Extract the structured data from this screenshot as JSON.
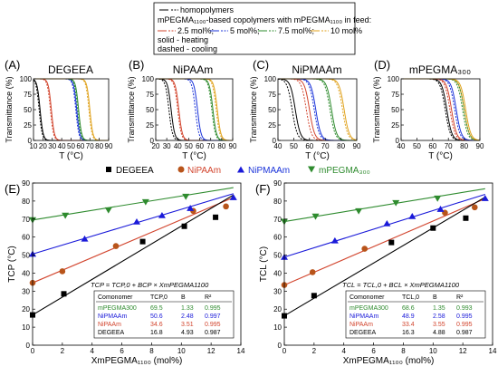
{
  "legend_top": {
    "homopolymers": "homopolymers",
    "copolymers_heading": "mPEGMA₁₁₀₀-based copolymers with mPEGMA₁₁₀₀ in feed:",
    "feed_items": [
      "2.5 mol%;",
      "5 mol%;",
      "7.5 mol%;",
      "10 mol%"
    ],
    "solid": "solid - heating",
    "dashed": "dashed - cooling"
  },
  "legend_mid": [
    "DEGEEA",
    "NiPAAm",
    "NiPMAAm",
    "mPEGMA₃₀₀"
  ],
  "colors": {
    "black": "#000000",
    "red": "#d2452e",
    "blue": "#1a33d9",
    "green": "#2e8b2e",
    "orange": "#e0a21c",
    "gray": "#777777",
    "deg": "#000000",
    "nipaam": "#b8541a",
    "nipmaam": "#1a1ad9",
    "mpeg": "#2e8b2e"
  },
  "chart_data": [
    {
      "panel": "(A)",
      "title": "DEGEEA",
      "type": "line",
      "xlabel": "T (°C)",
      "ylabel": "Transmittance (%)",
      "xlim": [
        10,
        90
      ],
      "ylim": [
        0,
        100
      ],
      "xticks": [
        10,
        20,
        30,
        40,
        50,
        60,
        70,
        80,
        90
      ],
      "yticks": [
        0,
        25,
        50,
        75,
        100
      ],
      "curves": [
        {
          "color": "black",
          "heating_tcp": 17,
          "cooling_tcp": 16
        },
        {
          "color": "red",
          "heating_tcp": 29,
          "cooling_tcp": 28
        },
        {
          "color": "blue",
          "heating_tcp": 56,
          "cooling_tcp": 55
        },
        {
          "color": "green",
          "heating_tcp": 58,
          "cooling_tcp": 57
        },
        {
          "color": "orange",
          "heating_tcp": 70,
          "cooling_tcp": 69
        }
      ]
    },
    {
      "panel": "(B)",
      "title": "NiPAAm",
      "type": "line",
      "xlabel": "T (°C)",
      "ylabel": "Transmittance (%)",
      "xlim": [
        20,
        90
      ],
      "ylim": [
        0,
        100
      ],
      "xticks": [
        20,
        30,
        40,
        50,
        60,
        70,
        80,
        90
      ],
      "yticks": [
        0,
        25,
        50,
        75,
        100
      ],
      "curves": [
        {
          "color": "black",
          "heating_tcp": 34,
          "cooling_tcp": 32
        },
        {
          "color": "red",
          "heating_tcp": 41,
          "cooling_tcp": 40
        },
        {
          "color": "blue",
          "heating_tcp": 58,
          "cooling_tcp": 56
        },
        {
          "color": "green",
          "heating_tcp": 72,
          "cooling_tcp": 71
        },
        {
          "color": "orange",
          "heating_tcp": 76,
          "cooling_tcp": 75
        }
      ]
    },
    {
      "panel": "(C)",
      "title": "NiPMAAm",
      "type": "line",
      "xlabel": "T (°C)",
      "ylabel": "Transmittance (%)",
      "xlim": [
        40,
        90
      ],
      "ylim": [
        0,
        100
      ],
      "xticks": [
        40,
        50,
        60,
        70,
        80,
        90
      ],
      "yticks": [
        0,
        25,
        50,
        75,
        100
      ],
      "curves": [
        {
          "color": "black",
          "heating_tcp": 51,
          "cooling_tcp": 49
        },
        {
          "color": "red",
          "heating_tcp": 60,
          "cooling_tcp": 58
        },
        {
          "color": "blue",
          "heating_tcp": 64,
          "cooling_tcp": 63
        },
        {
          "color": "green",
          "heating_tcp": 74,
          "cooling_tcp": 73
        },
        {
          "color": "orange",
          "heating_tcp": 82,
          "cooling_tcp": 81
        }
      ]
    },
    {
      "panel": "(D)",
      "title": "mPEGMA₃₀₀",
      "type": "line",
      "xlabel": "T (°C)",
      "ylabel": "Transmittance (%)",
      "xlim": [
        40,
        90
      ],
      "ylim": [
        0,
        100
      ],
      "xticks": [
        40,
        50,
        60,
        70,
        80,
        90
      ],
      "yticks": [
        0,
        25,
        50,
        75,
        100
      ],
      "curves": [
        {
          "color": "black",
          "heating_tcp": 69,
          "cooling_tcp": 68
        },
        {
          "color": "red",
          "heating_tcp": 72,
          "cooling_tcp": 71
        },
        {
          "color": "blue",
          "heating_tcp": 75,
          "cooling_tcp": 74
        },
        {
          "color": "green",
          "heating_tcp": 80,
          "cooling_tcp": 79
        },
        {
          "color": "orange",
          "heating_tcp": 81,
          "cooling_tcp": 80
        }
      ]
    },
    {
      "panel": "(E)",
      "type": "scatter",
      "xlabel": "XmPEGMA₁₁₀₀ (mol%)",
      "ylabel": "TCP (°C)",
      "xlim": [
        0,
        14
      ],
      "ylim": [
        0,
        90
      ],
      "xticks": [
        0,
        2,
        4,
        6,
        8,
        10,
        12,
        14
      ],
      "yticks": [
        0,
        10,
        20,
        30,
        40,
        50,
        60,
        70,
        80,
        90
      ],
      "equation": "TCP = TCP,0 + BCP × XmPEGMA1100",
      "table_header": [
        "Comonomer",
        "TCP,0",
        "B",
        "R²"
      ],
      "table_rows": [
        {
          "name": "mPEGMA300",
          "t0": "69.5",
          "b": "1.33",
          "r2": "0.995",
          "color": "green"
        },
        {
          "name": "NiPMAAm",
          "t0": "50.6",
          "b": "2.48",
          "r2": "0.997",
          "color": "blue"
        },
        {
          "name": "NiPAAm",
          "t0": "34.6",
          "b": "3.51",
          "r2": "0.995",
          "color": "red"
        },
        {
          "name": "DEGEEA",
          "t0": "16.8",
          "b": "4.93",
          "r2": "0.987",
          "color": "black"
        }
      ],
      "series": [
        {
          "name": "DEGEEA",
          "color": "deg",
          "marker": "square",
          "x": [
            0,
            2.1,
            7.4,
            10.2,
            12.3
          ],
          "y": [
            16.8,
            28.5,
            57.5,
            66,
            71
          ]
        },
        {
          "name": "NiPAAm",
          "color": "nipaam",
          "marker": "circle",
          "x": [
            0,
            2,
            5.6,
            10.8,
            13
          ],
          "y": [
            34.6,
            41,
            55,
            74.5,
            77
          ]
        },
        {
          "name": "NiPMAAm",
          "color": "nipmaam",
          "marker": "triangle",
          "x": [
            0,
            3.5,
            7,
            8.7,
            10.6,
            13.5
          ],
          "y": [
            50.6,
            59,
            68.5,
            72,
            76,
            82
          ]
        },
        {
          "name": "mPEGMA300",
          "color": "mpeg",
          "marker": "tri-down",
          "x": [
            0,
            2.2,
            5.1,
            7.6,
            10.3
          ],
          "y": [
            69.5,
            72,
            75,
            79.5,
            82.5
          ]
        }
      ]
    },
    {
      "panel": "(F)",
      "type": "scatter",
      "xlabel": "XmPEGMA₁₁₀₀ (mol%)",
      "ylabel": "TCL (°C)",
      "xlim": [
        0,
        14
      ],
      "ylim": [
        0,
        90
      ],
      "xticks": [
        0,
        2,
        4,
        6,
        8,
        10,
        12,
        14
      ],
      "yticks": [
        0,
        10,
        20,
        30,
        40,
        50,
        60,
        70,
        80,
        90
      ],
      "equation": "TCL = TCL,0 + BCL × XmPEGMA1100",
      "table_header": [
        "Comonomer",
        "TCL,0",
        "B",
        "R²"
      ],
      "table_rows": [
        {
          "name": "mPEGMA300",
          "t0": "68.6",
          "b": "1.35",
          "r2": "0.993",
          "color": "green"
        },
        {
          "name": "NiPMAAm",
          "t0": "48.9",
          "b": "2.58",
          "r2": "0.995",
          "color": "blue"
        },
        {
          "name": "NiPAAm",
          "t0": "33.4",
          "b": "3.55",
          "r2": "0.995",
          "color": "red"
        },
        {
          "name": "DEGEEA",
          "t0": "16.3",
          "b": "4.88",
          "r2": "0.987",
          "color": "black"
        }
      ],
      "series": [
        {
          "name": "DEGEEA",
          "color": "deg",
          "marker": "square",
          "x": [
            0,
            2,
            7.2,
            10,
            12.2
          ],
          "y": [
            16.3,
            27.5,
            57,
            65,
            70.5
          ]
        },
        {
          "name": "NiPAAm",
          "color": "nipaam",
          "marker": "circle",
          "x": [
            0,
            1.9,
            5.4,
            10.8,
            12.8
          ],
          "y": [
            33.4,
            40.5,
            53.5,
            73.5,
            76.5
          ]
        },
        {
          "name": "NiPMAAm",
          "color": "nipmaam",
          "marker": "triangle",
          "x": [
            0,
            3.4,
            6.9,
            8.6,
            10.5,
            13.5
          ],
          "y": [
            48.9,
            58,
            67.5,
            71.5,
            75.5,
            81.5
          ]
        },
        {
          "name": "mPEGMA300",
          "color": "mpeg",
          "marker": "tri-down",
          "x": [
            0,
            2.1,
            5,
            7.5,
            10.3
          ],
          "y": [
            68.6,
            71.5,
            74.5,
            79,
            81.5
          ]
        }
      ]
    }
  ]
}
